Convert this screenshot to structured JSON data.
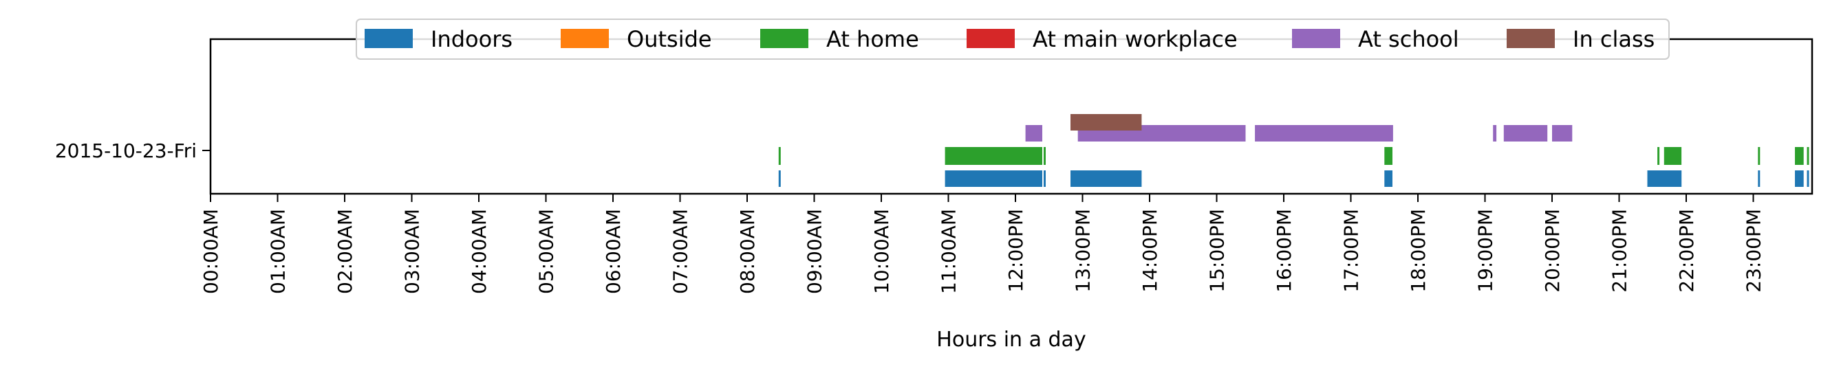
{
  "chart_data": {
    "type": "timeline",
    "xlabel": "Hours in a day",
    "xlim": [
      0,
      24
    ],
    "x_ticks": [
      {
        "value": 0,
        "label": "00:00AM"
      },
      {
        "value": 1,
        "label": "01:00AM"
      },
      {
        "value": 2,
        "label": "02:00AM"
      },
      {
        "value": 3,
        "label": "03:00AM"
      },
      {
        "value": 4,
        "label": "04:00AM"
      },
      {
        "value": 5,
        "label": "05:00AM"
      },
      {
        "value": 6,
        "label": "06:00AM"
      },
      {
        "value": 7,
        "label": "07:00AM"
      },
      {
        "value": 8,
        "label": "08:00AM"
      },
      {
        "value": 9,
        "label": "09:00AM"
      },
      {
        "value": 10,
        "label": "10:00AM"
      },
      {
        "value": 11,
        "label": "11:00AM"
      },
      {
        "value": 12,
        "label": "12:00PM"
      },
      {
        "value": 13,
        "label": "13:00PM"
      },
      {
        "value": 14,
        "label": "14:00PM"
      },
      {
        "value": 15,
        "label": "15:00PM"
      },
      {
        "value": 16,
        "label": "16:00PM"
      },
      {
        "value": 17,
        "label": "17:00PM"
      },
      {
        "value": 18,
        "label": "18:00PM"
      },
      {
        "value": 19,
        "label": "19:00PM"
      },
      {
        "value": 20,
        "label": "20:00PM"
      },
      {
        "value": 21,
        "label": "21:00PM"
      },
      {
        "value": 22,
        "label": "22:00PM"
      },
      {
        "value": 23,
        "label": "23:00PM"
      }
    ],
    "y_categories": [
      "2015-10-23-Fri"
    ],
    "legend_position": "top-center",
    "series": [
      {
        "name": "Indoors",
        "color": "#1f77b4",
        "intervals": [
          [
            8.47,
            8.5
          ],
          [
            10.95,
            12.4
          ],
          [
            12.42,
            12.45
          ],
          [
            12.82,
            13.88
          ],
          [
            17.5,
            17.62
          ],
          [
            21.42,
            21.93
          ],
          [
            23.07,
            23.1
          ],
          [
            23.62,
            23.75
          ],
          [
            23.8,
            23.83
          ]
        ]
      },
      {
        "name": "Outside",
        "color": "#ff7f0e",
        "intervals": []
      },
      {
        "name": "At home",
        "color": "#2ca02c",
        "intervals": [
          [
            8.47,
            8.5
          ],
          [
            10.95,
            12.4
          ],
          [
            12.42,
            12.45
          ],
          [
            17.5,
            17.62
          ],
          [
            21.57,
            21.6
          ],
          [
            21.67,
            21.93
          ],
          [
            23.07,
            23.1
          ],
          [
            23.62,
            23.75
          ],
          [
            23.8,
            23.83
          ]
        ]
      },
      {
        "name": "At main workplace",
        "color": "#d62728",
        "intervals": []
      },
      {
        "name": "At school",
        "color": "#9467bd",
        "intervals": [
          [
            12.15,
            12.4
          ],
          [
            12.93,
            15.43
          ],
          [
            15.57,
            17.63
          ],
          [
            19.12,
            19.17
          ],
          [
            19.28,
            19.93
          ],
          [
            20.0,
            20.3
          ]
        ]
      },
      {
        "name": "In class",
        "color": "#8c564b",
        "intervals": [
          [
            12.82,
            13.88
          ]
        ]
      }
    ]
  }
}
